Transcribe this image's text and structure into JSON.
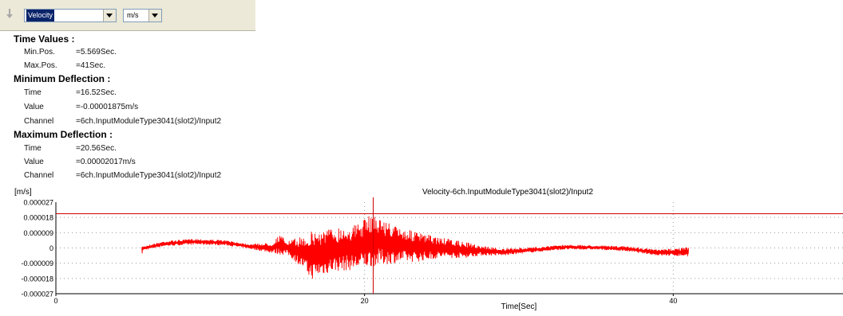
{
  "toolbar": {
    "quantity": "Velocity",
    "unit": "m/s"
  },
  "info": {
    "time_values": {
      "title": "Time Values :",
      "min_label": "Min.Pos.",
      "min_value": "=5.569Sec.",
      "max_label": "Max.Pos.",
      "max_value": "=41Sec."
    },
    "minimum": {
      "title": "Minimum Deflection :",
      "time_label": "Time",
      "time_value": "=16.52Sec.",
      "value_label": "Value",
      "value_value": "=-0.00001875m/s",
      "channel_label": "Channel",
      "channel_value": "=6ch.InputModuleType3041(slot2)/Input2"
    },
    "maximum": {
      "title": "Maximum Deflection :",
      "time_label": "Time",
      "time_value": "=20.56Sec.",
      "value_label": "Value",
      "value_value": "=0.00002017m/s",
      "channel_label": "Channel",
      "channel_value": "=6ch.InputModuleType3041(slot2)/Input2"
    }
  },
  "colors": {
    "signal": "#ff0000",
    "cursor": "#cc0000",
    "toolbar_bg": "#ece9d8",
    "selection": "#0a246a"
  },
  "chart_data": {
    "type": "line",
    "title": "Velocity-6ch.InputModuleType3041(slot2)/Input2",
    "ylabel": "[m/s]",
    "xlabel": "Time[Sec]",
    "xlim": [
      0,
      51
    ],
    "ylim": [
      -2.7e-05,
      2.7e-05
    ],
    "x_ticks": [
      "0",
      "20",
      "40"
    ],
    "x_tick_values": [
      0,
      20,
      40
    ],
    "y_ticks": [
      "0.000027",
      "0.000018",
      "0.000009",
      "0",
      "-0.000009",
      "-0.000018",
      "-0.000027"
    ],
    "y_tick_values": [
      2.7e-05,
      1.8e-05,
      9e-06,
      0,
      -9e-06,
      -1.8e-05,
      -2.7e-05
    ],
    "grid": true,
    "cursor_h": 2.017e-05,
    "cursor_v": 20.56,
    "series": [
      {
        "x_range": [
          5.569,
          41
        ],
        "envelope": [
          {
            "x": 5.6,
            "low": -1.5e-06,
            "high": 1e-06
          },
          {
            "x": 7,
            "low": 1e-06,
            "high": 4e-06
          },
          {
            "x": 9,
            "low": 2e-06,
            "high": 5.5e-06
          },
          {
            "x": 11,
            "low": 1.5e-06,
            "high": 4.5e-06
          },
          {
            "x": 12.5,
            "low": -5e-07,
            "high": 2.5e-06
          },
          {
            "x": 14,
            "low": -3e-06,
            "high": 3e-06
          },
          {
            "x": 14.5,
            "low": -4e-06,
            "high": 8e-06
          },
          {
            "x": 15,
            "low": -4e-06,
            "high": 4e-06
          },
          {
            "x": 16,
            "low": -1.2e-05,
            "high": 7e-06
          },
          {
            "x": 16.5,
            "low": -1.87e-05,
            "high": 1e-05
          },
          {
            "x": 18,
            "low": -1.4e-05,
            "high": 1.2e-05
          },
          {
            "x": 19.5,
            "low": -1.3e-05,
            "high": 1.4e-05
          },
          {
            "x": 20.5,
            "low": -1.1e-05,
            "high": 2.02e-05
          },
          {
            "x": 22,
            "low": -9e-06,
            "high": 1.3e-05
          },
          {
            "x": 23.5,
            "low": -8e-06,
            "high": 9e-06
          },
          {
            "x": 25,
            "low": -6e-06,
            "high": 6e-06
          },
          {
            "x": 26.5,
            "low": -6e-06,
            "high": 3.5e-06
          },
          {
            "x": 27.5,
            "low": -4.5e-06,
            "high": 1.5e-06
          },
          {
            "x": 29,
            "low": -4.5e-06,
            "high": -5e-07
          },
          {
            "x": 31,
            "low": -2.5e-06,
            "high": 5e-07
          },
          {
            "x": 33,
            "low": -1e-06,
            "high": 2e-06
          },
          {
            "x": 35,
            "low": -1e-06,
            "high": 1.5e-06
          },
          {
            "x": 37,
            "low": -2e-06,
            "high": 1e-06
          },
          {
            "x": 39,
            "low": -4.5e-06,
            "high": -1e-06
          },
          {
            "x": 41,
            "low": -5e-06,
            "high": 5e-07
          }
        ]
      }
    ]
  }
}
